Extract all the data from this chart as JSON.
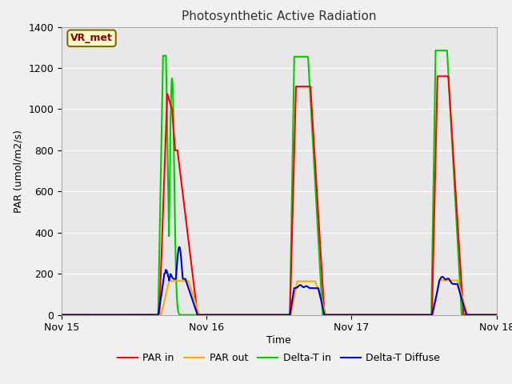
{
  "title": "Photosynthetic Active Radiation",
  "xlabel": "Time",
  "ylabel": "PAR (umol/m2/s)",
  "ylim": [
    0,
    1400
  ],
  "yticks": [
    0,
    200,
    400,
    600,
    800,
    1000,
    1200,
    1400
  ],
  "tag_text": "VR_met",
  "tag_bg": "#ffffcc",
  "tag_border": "#886600",
  "tag_text_color": "#880000",
  "xtick_labels": [
    "Nov 15",
    "Nov 16",
    "Nov 17",
    "Nov 18"
  ],
  "fig_bg": "#f0f0f0",
  "plot_bg": "#e8e8e8",
  "grid_color": "#ffffff",
  "line_width": 1.5,
  "par_in_color": "#ff0000",
  "par_out_color": "#ffaa00",
  "delta_t_in_color": "#00cc00",
  "delta_t_diffuse_color": "#0000cc"
}
